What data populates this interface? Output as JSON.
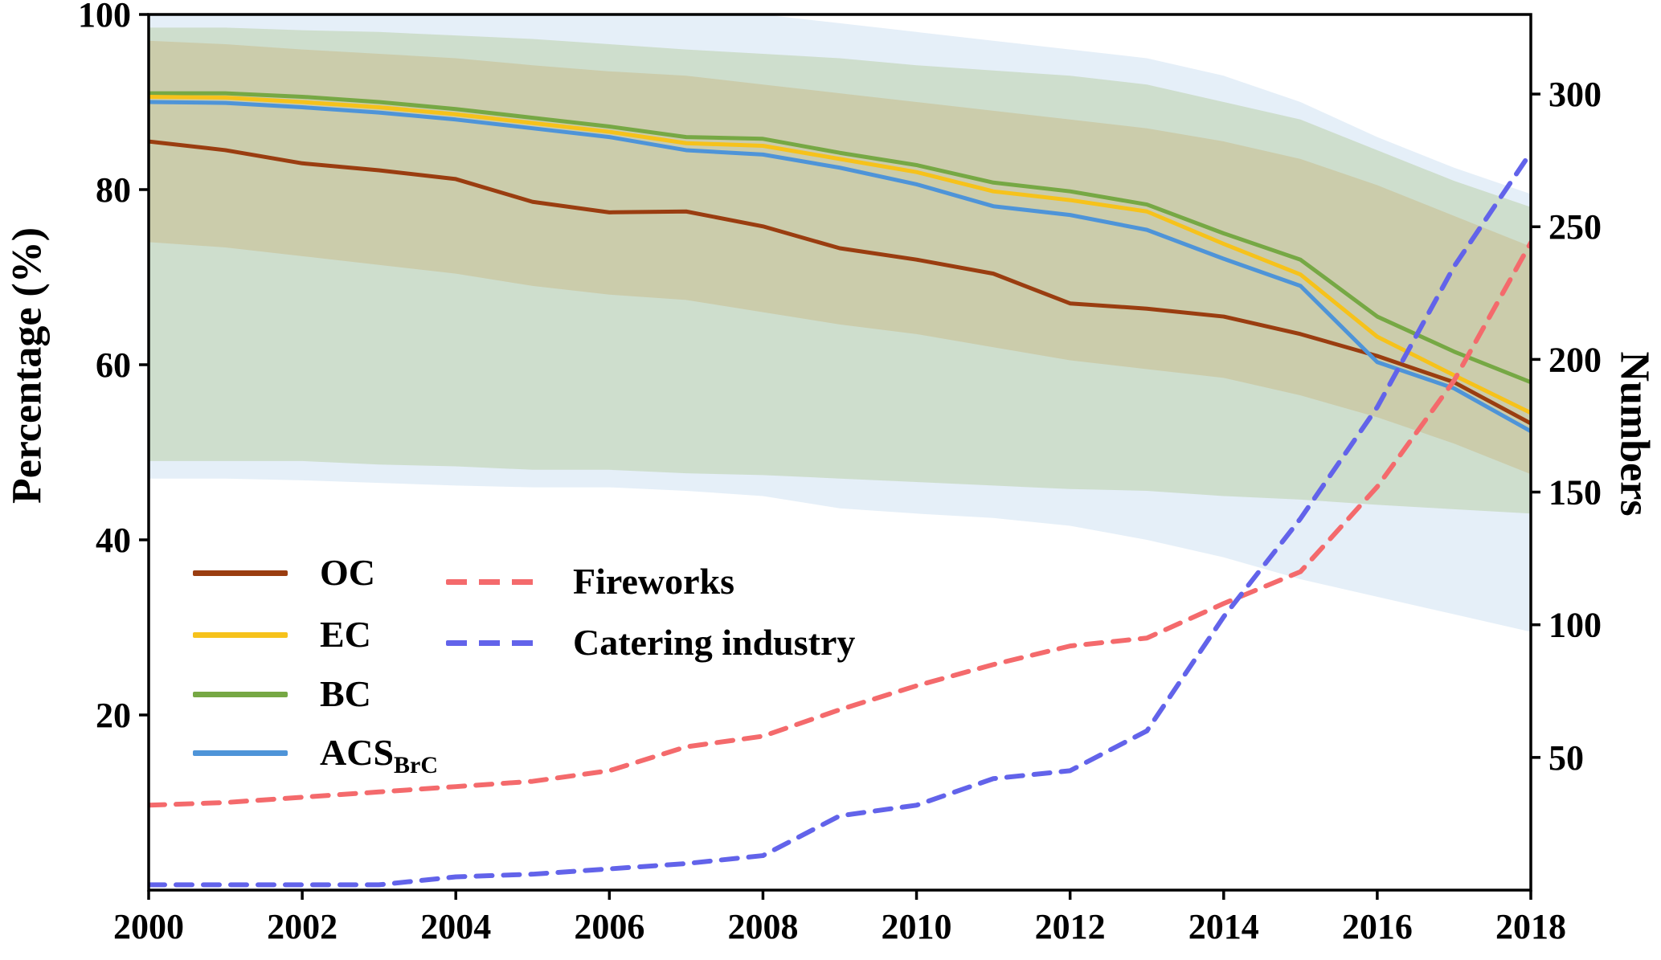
{
  "figure": {
    "left_axis_label": "Percentage (%)",
    "right_axis_label": "Numbers",
    "legend": {
      "solid": [
        {
          "label": "OC",
          "color": "#9a3d10"
        },
        {
          "label": "EC",
          "color": "#f6c21b"
        },
        {
          "label": "BC",
          "color": "#76a844"
        },
        {
          "label": "ACS",
          "subscript": "BrC",
          "color": "#4e94d8"
        }
      ],
      "dashed": [
        {
          "label": "Fireworks",
          "color": "#f46a6c"
        },
        {
          "label": "Catering industry",
          "color": "#6263ea"
        }
      ]
    }
  },
  "chart_data": {
    "type": "line",
    "title": "",
    "x": [
      2000,
      2001,
      2002,
      2003,
      2004,
      2005,
      2006,
      2007,
      2008,
      2009,
      2010,
      2011,
      2012,
      2013,
      2014,
      2015,
      2016,
      2017,
      2018
    ],
    "x_ticks": [
      2000,
      2002,
      2004,
      2006,
      2008,
      2010,
      2012,
      2014,
      2016,
      2018
    ],
    "y_left": {
      "label": "Percentage (%)",
      "range": [
        0,
        100
      ],
      "ticks": [
        20,
        40,
        60,
        80,
        100
      ]
    },
    "y_right": {
      "label": "Numbers",
      "range": [
        0,
        330
      ],
      "ticks": [
        50,
        100,
        150,
        200,
        250,
        300
      ]
    },
    "grid": false,
    "legend_position": "lower-left-inside",
    "bands": [
      {
        "name": "ACS_BrC_uncertainty",
        "color": "#dce9f6",
        "opacity": 0.75,
        "lower": [
          47,
          47,
          46.8,
          46.5,
          46.2,
          46,
          46,
          45.6,
          45,
          43.6,
          43,
          42.5,
          41.6,
          40,
          38,
          35.5,
          33.5,
          31.5,
          29.5
        ],
        "upper": [
          104,
          104,
          104,
          103.5,
          103,
          102.5,
          102,
          101,
          100,
          99,
          98,
          97,
          96,
          95,
          93,
          90,
          86,
          82.5,
          79.5
        ]
      },
      {
        "name": "BC_EC_uncertainty",
        "color": "#a3bf7e",
        "opacity": 0.35,
        "lower": [
          49,
          49,
          49,
          48.6,
          48.4,
          48,
          48,
          47.6,
          47.4,
          47,
          46.6,
          46.2,
          45.8,
          45.6,
          45,
          44.6,
          44,
          43.5,
          43
        ],
        "upper": [
          98.5,
          98.5,
          98.2,
          98,
          97.6,
          97.2,
          96.6,
          96,
          95.5,
          95,
          94.2,
          93.6,
          93,
          92,
          90,
          88,
          84.5,
          81,
          78
        ]
      },
      {
        "name": "OC_uncertainty",
        "color": "#c9b27c",
        "opacity": 0.42,
        "lower": [
          74,
          73.4,
          72.4,
          71.4,
          70.4,
          69,
          68,
          67.4,
          66,
          64.6,
          63.5,
          62,
          60.5,
          59.5,
          58.5,
          56.5,
          54,
          51,
          47.5
        ],
        "upper": [
          97,
          96.6,
          96,
          95.5,
          95,
          94.2,
          93.5,
          93,
          92,
          91,
          90,
          89,
          88,
          87,
          85.5,
          83.5,
          80.5,
          77,
          73.5
        ]
      }
    ],
    "series": [
      {
        "name": "OC",
        "axis": "left",
        "style": "solid",
        "color": "#9a3d10",
        "width": 5,
        "values": [
          85.5,
          84.5,
          83.0,
          82.2,
          81.2,
          78.6,
          77.4,
          77.5,
          75.8,
          73.3,
          72.0,
          70.4,
          67.0,
          66.4,
          65.5,
          63.5,
          61.0,
          58.0,
          53.3
        ]
      },
      {
        "name": "BC",
        "axis": "left",
        "style": "solid",
        "color": "#76a844",
        "width": 5,
        "values": [
          91.0,
          91.0,
          90.6,
          90.0,
          89.2,
          88.2,
          87.2,
          86.0,
          85.8,
          84.2,
          82.8,
          80.8,
          79.8,
          78.3,
          75.0,
          72.0,
          65.5,
          61.5,
          58.0
        ]
      },
      {
        "name": "EC",
        "axis": "left",
        "style": "solid",
        "color": "#f6c21b",
        "width": 5,
        "values": [
          90.6,
          90.5,
          90.0,
          89.4,
          88.6,
          87.6,
          86.6,
          85.3,
          85.0,
          83.5,
          82.0,
          79.8,
          78.8,
          77.5,
          73.8,
          70.3,
          63.2,
          58.8,
          54.5
        ]
      },
      {
        "name": "ACS_BrC",
        "axis": "left",
        "style": "solid",
        "color": "#4e94d8",
        "width": 5,
        "values": [
          90.0,
          89.9,
          89.4,
          88.8,
          88.0,
          87.0,
          86.0,
          84.5,
          84.0,
          82.5,
          80.6,
          78.1,
          77.1,
          75.4,
          72.1,
          69.0,
          60.3,
          57.3,
          52.4
        ]
      },
      {
        "name": "Fireworks",
        "axis": "right",
        "style": "dashed",
        "color": "#f46a6c",
        "width": 6,
        "values": [
          32,
          33,
          35,
          37,
          39,
          41,
          45,
          54,
          58,
          68,
          77,
          85,
          92,
          95,
          108,
          120,
          152,
          192,
          244
        ]
      },
      {
        "name": "Catering industry",
        "axis": "right",
        "style": "dashed",
        "color": "#6263ea",
        "width": 6,
        "values": [
          2,
          2,
          2,
          2,
          5,
          6,
          8,
          10,
          13,
          28,
          32,
          42,
          45,
          60,
          103,
          140,
          182,
          235,
          278
        ]
      }
    ]
  }
}
